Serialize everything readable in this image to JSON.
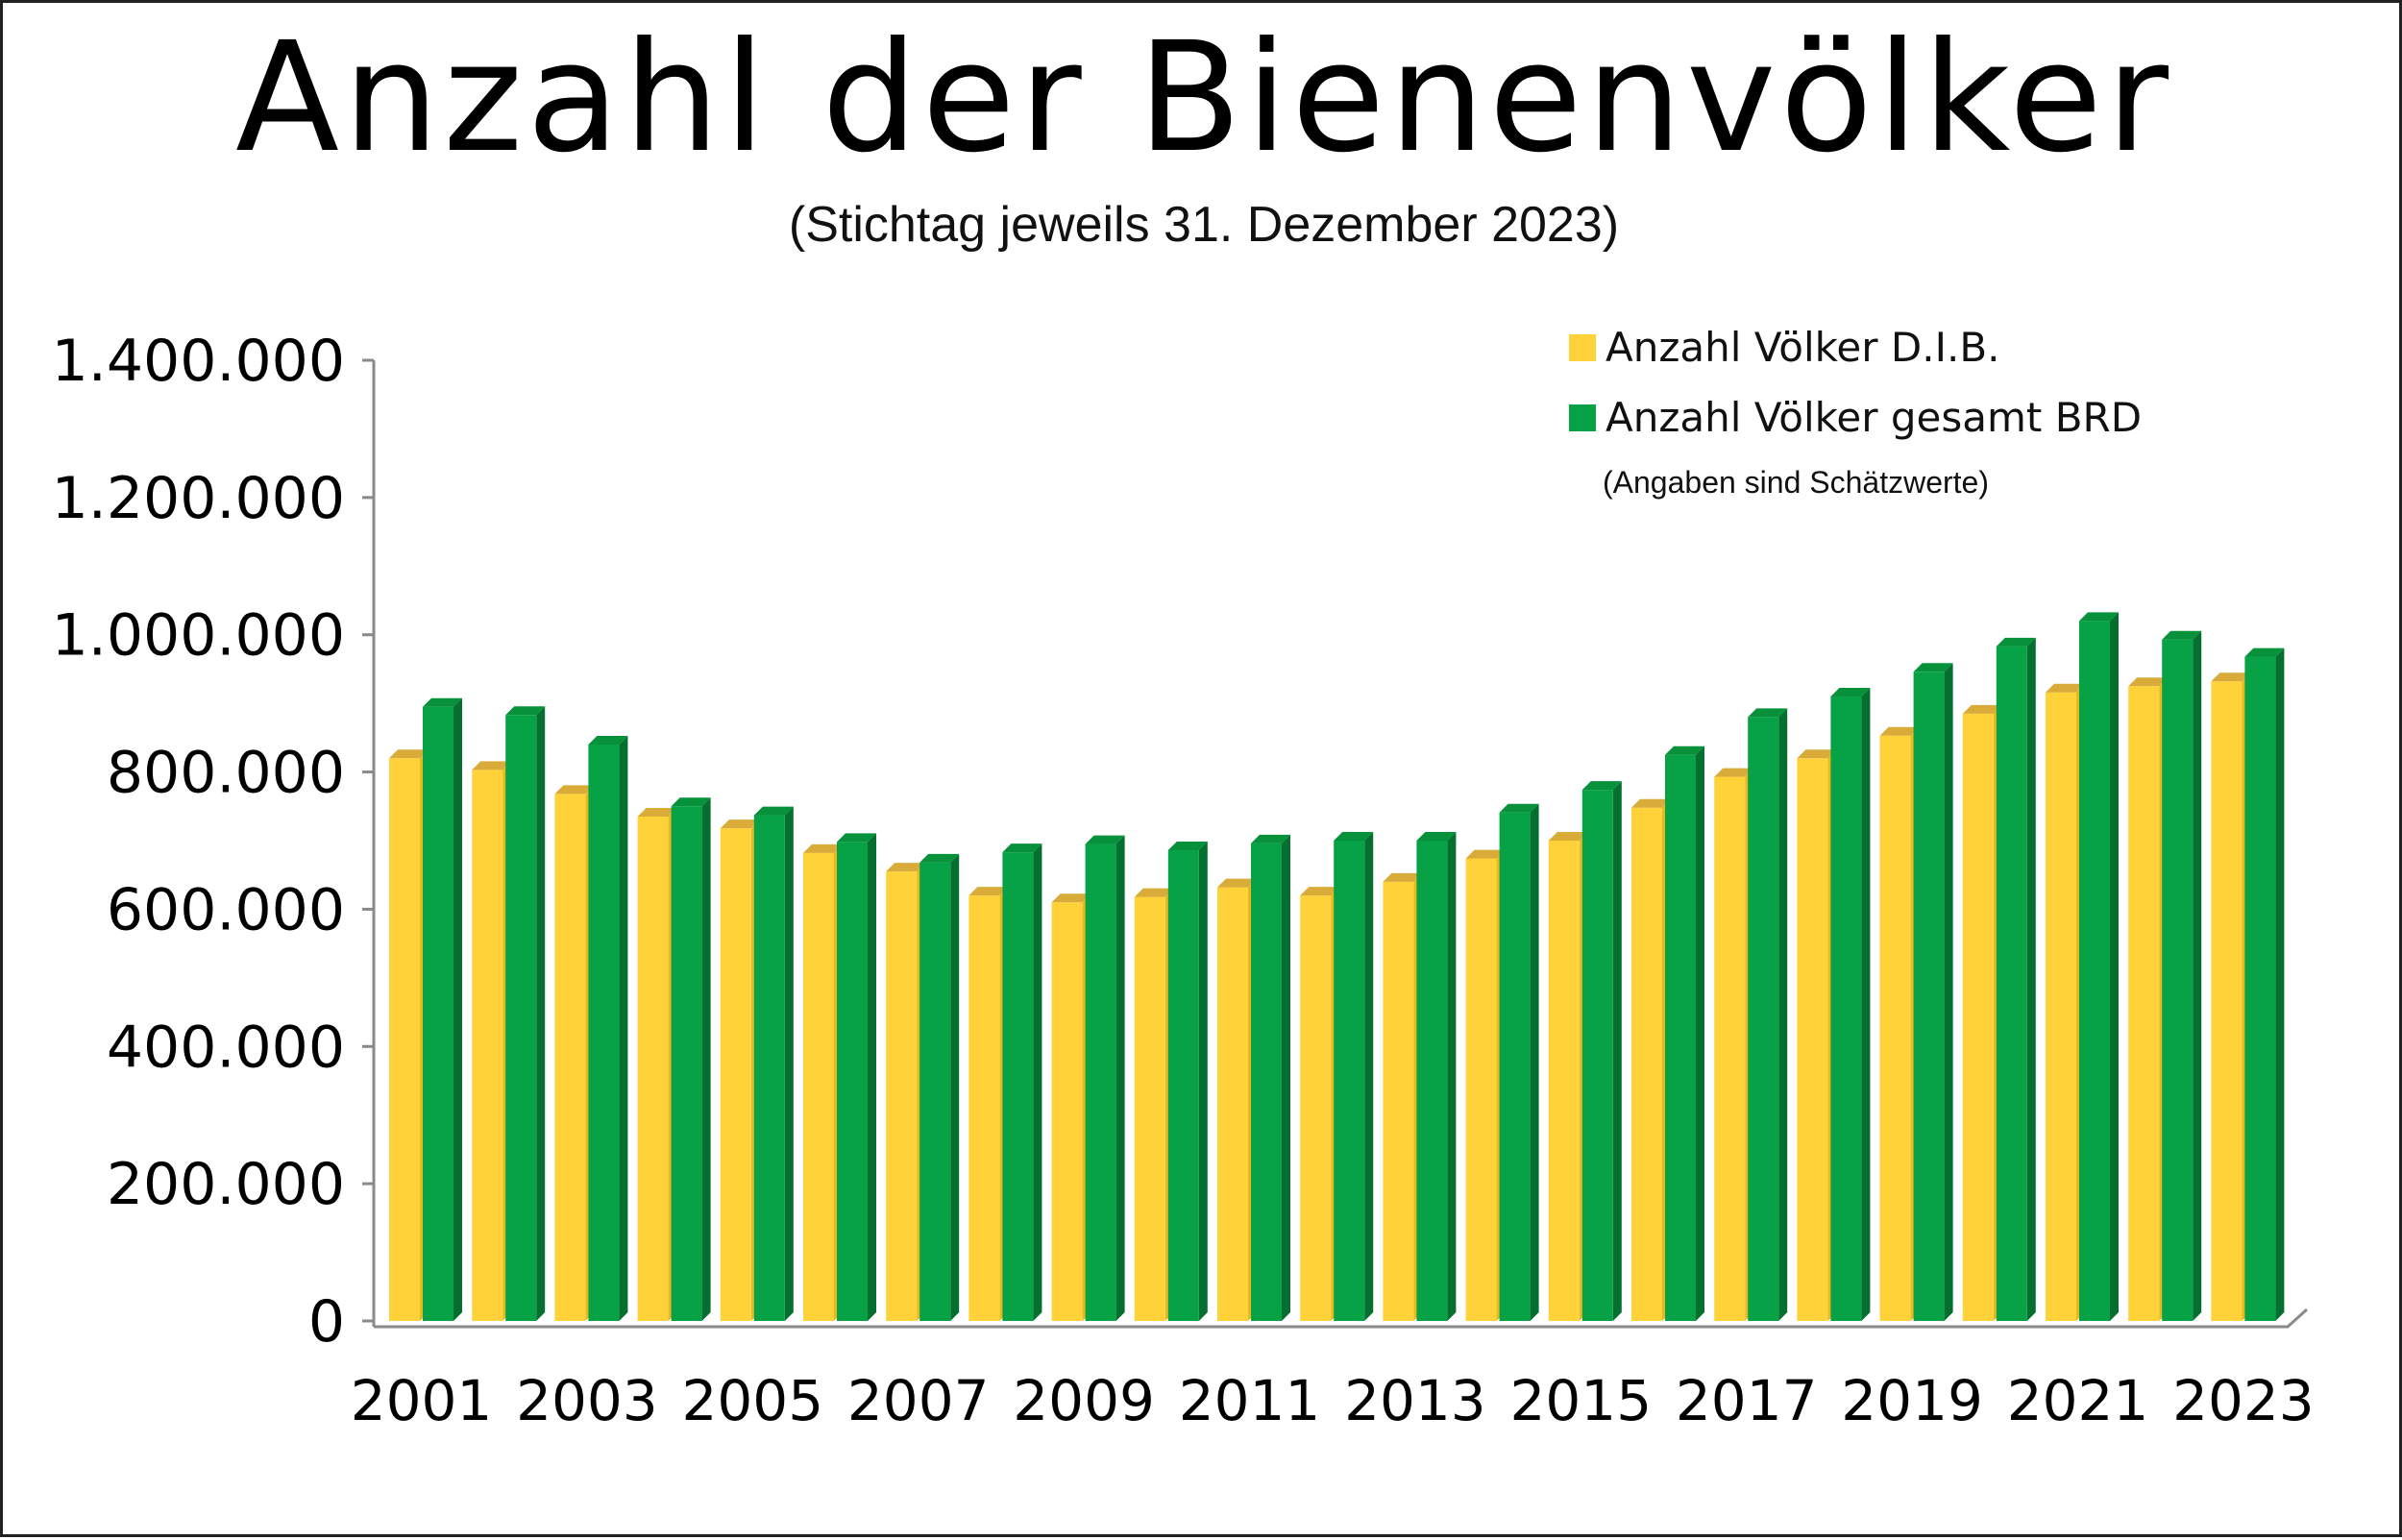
{
  "chart_data": {
    "type": "bar",
    "title": "Anzahl der Bienenvölker",
    "subtitle": "(Stichtag jeweils 31. Dezember 2023)",
    "note": "(Angaben sind Schätzwerte)",
    "categories": [
      "2001",
      "2002",
      "2003",
      "2004",
      "2005",
      "2006",
      "2007",
      "2008",
      "2009",
      "2010",
      "2011",
      "2012",
      "2013",
      "2014",
      "2015",
      "2016",
      "2017",
      "2018",
      "2019",
      "2020",
      "2021",
      "2022",
      "2023"
    ],
    "x_tick_labels": [
      "2001",
      "2003",
      "2005",
      "2007",
      "2009",
      "2011",
      "2013",
      "2015",
      "2017",
      "2019",
      "2021",
      "2023"
    ],
    "y_tick_labels": [
      "0",
      "200.000",
      "400.000",
      "600.000",
      "800.000",
      "1.000.000",
      "1.200.000",
      "1.400.000"
    ],
    "ylim": [
      0,
      1400000
    ],
    "y_tick_values": [
      0,
      200000,
      400000,
      600000,
      800000,
      1000000,
      1200000,
      1400000
    ],
    "xlabel": "",
    "ylabel": "",
    "legend_position": "top-right",
    "series": [
      {
        "name": "Anzahl Völker D.I.B.",
        "color": "#FFD23A",
        "top_color": "#D9AC3A",
        "side_color": "#E8B820",
        "values": [
          820000,
          803000,
          768000,
          735000,
          718000,
          682000,
          655000,
          620000,
          610000,
          618000,
          632000,
          620000,
          640000,
          674000,
          700000,
          748000,
          793000,
          820000,
          853000,
          885000,
          916000,
          925000,
          932000
        ]
      },
      {
        "name": "Anzahl Völker gesamt BRD",
        "color": "#06A245",
        "top_color": "#07913A",
        "side_color": "#046F2E",
        "values": [
          895000,
          883000,
          840000,
          750000,
          737000,
          698000,
          668000,
          683000,
          695000,
          686000,
          696000,
          700000,
          700000,
          741000,
          774000,
          825000,
          880000,
          910000,
          946000,
          983000,
          1020000,
          993000,
          968000
        ]
      }
    ]
  }
}
